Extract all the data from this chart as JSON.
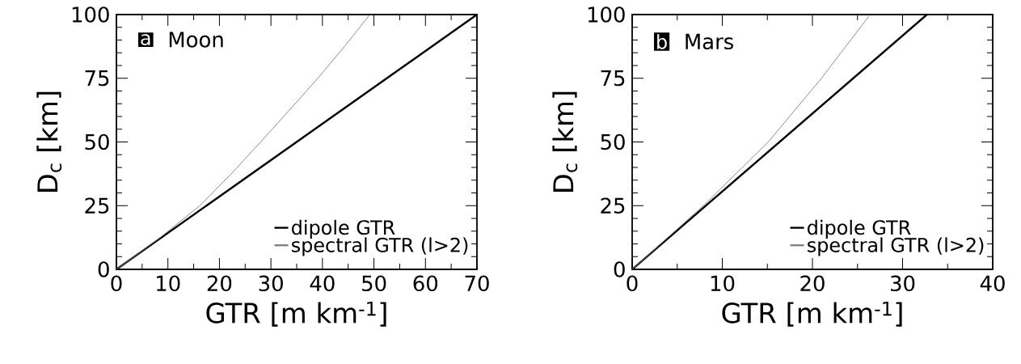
{
  "chart_data": [
    {
      "type": "line",
      "title": "Moon",
      "annotations": [
        "a"
      ],
      "xlabel": "GTR [m km$^{-1}$]",
      "ylabel": "D$_{c}$ [km]",
      "xlim": [
        0,
        70
      ],
      "xticks": [
        0,
        10,
        20,
        30,
        40,
        50,
        60,
        70
      ],
      "ylim": [
        0,
        100
      ],
      "yticks": [
        0,
        25,
        50,
        75,
        100
      ],
      "legend": "bottom right",
      "grid": false,
      "series": [
        {
          "name": "dipole GTR",
          "color": "#000000",
          "x": [
            0,
            70
          ],
          "values": [
            0,
            100
          ]
        },
        {
          "name": "spectral GTR (l>2)",
          "color": "#808080",
          "x": [
            0,
            8.5,
            16.2,
            22.3,
            28.0,
            33.6,
            39.1,
            44.3,
            49.2
          ],
          "values": [
            0,
            12.5,
            25,
            37.5,
            50,
            62.5,
            75,
            87.5,
            100
          ]
        }
      ]
    },
    {
      "type": "line",
      "title": "Mars",
      "annotations": [
        "b"
      ],
      "xlabel": "GTR [m km$^{-1}$]",
      "ylabel": "D$_{c}$ [km]",
      "xlim": [
        0,
        40
      ],
      "xticks": [
        0,
        10,
        20,
        30,
        40
      ],
      "ylim": [
        0,
        100
      ],
      "yticks": [
        0,
        25,
        50,
        75,
        100
      ],
      "legend": "bottom right",
      "grid": false,
      "series": [
        {
          "name": "dipole GTR",
          "color": "#000000",
          "x": [
            0,
            32.7
          ],
          "values": [
            0,
            100
          ]
        },
        {
          "name": "spectral GTR (l>2)",
          "color": "#808080",
          "x": [
            0,
            7.9,
            15.1,
            21.0,
            26.4
          ],
          "values": [
            0,
            25,
            50,
            75,
            100
          ]
        }
      ]
    }
  ]
}
